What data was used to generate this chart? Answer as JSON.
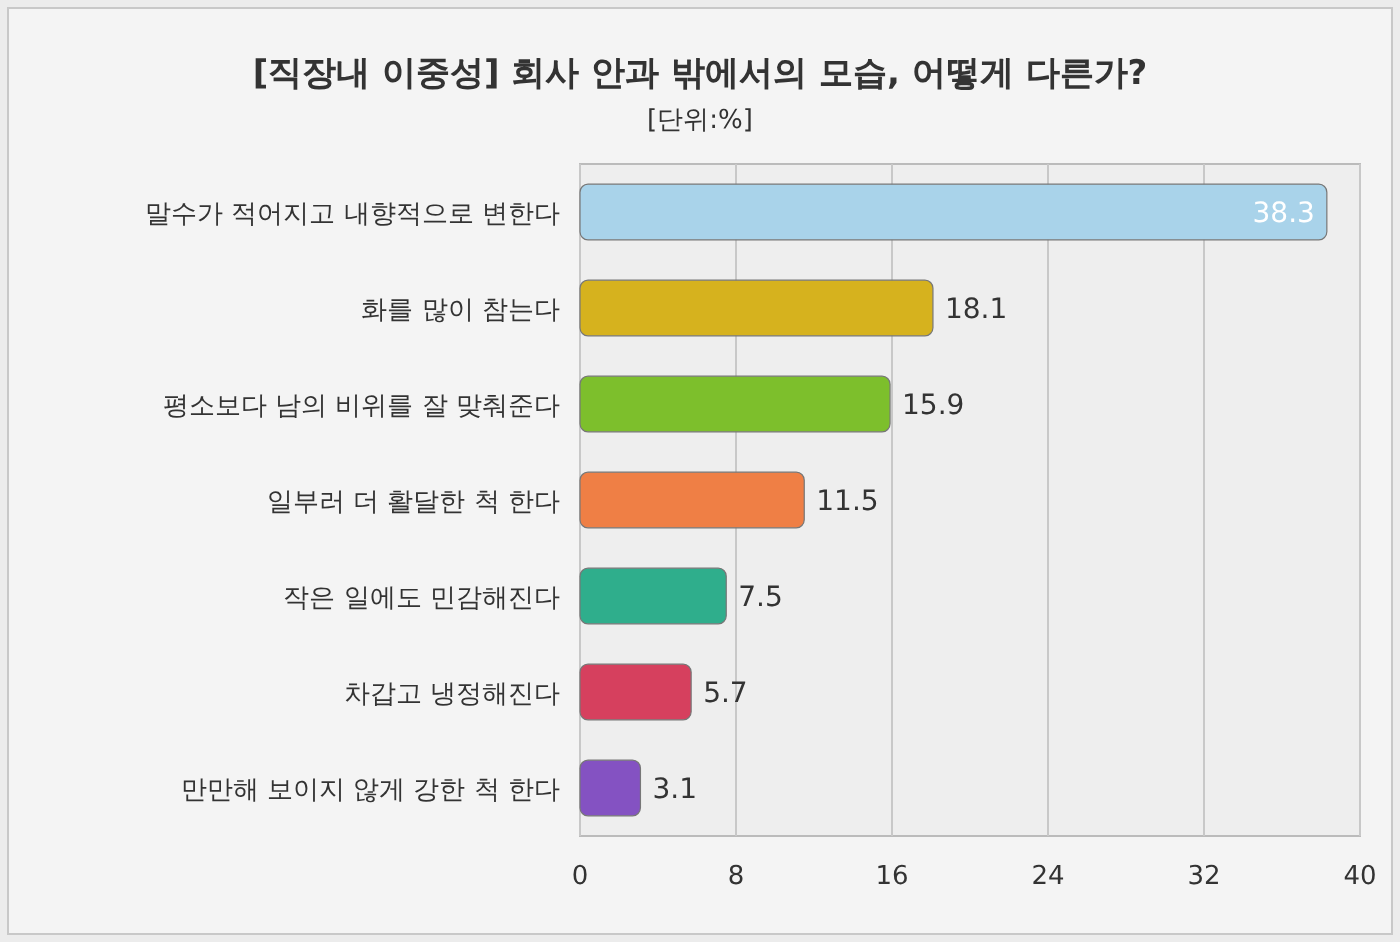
{
  "chart_data": {
    "type": "bar",
    "orientation": "horizontal",
    "title": "[직장내 이중성] 회사 안과 밖에서의 모습, 어떻게 다른가?",
    "subtitle": "[단위:%]",
    "categories": [
      "말수가 적어지고 내향적으로 변한다",
      "화를 많이 참는다",
      "평소보다 남의 비위를 잘 맞춰준다",
      "일부러 더 활달한 척 한다",
      "작은 일에도 민감해진다",
      "차갑고 냉정해진다",
      "만만해 보이지 않게 강한 척 한다"
    ],
    "values": [
      38.3,
      18.1,
      15.9,
      11.5,
      7.5,
      5.7,
      3.1
    ],
    "colors": [
      "#a9d3ea",
      "#d6b21e",
      "#7dbf2c",
      "#ef7f45",
      "#2fae8c",
      "#d6405e",
      "#8452c2"
    ],
    "xlim": [
      0,
      40
    ],
    "xticks": [
      0,
      8,
      16,
      24,
      32,
      40
    ],
    "grid": "x",
    "data_labels": true
  }
}
